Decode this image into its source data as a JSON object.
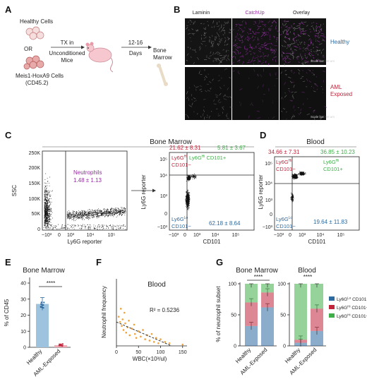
{
  "panel_letters": [
    "A",
    "B",
    "C",
    "D",
    "E",
    "F",
    "G"
  ],
  "panel_a": {
    "healthy": "Healthy Cells",
    "or": "OR",
    "donor_1": "Meis1-HoxA9 Cells",
    "donor_2": "(CD45.2)",
    "tx_1": "TX in",
    "tx_2": "Unconditioned",
    "tx_3": "Mice",
    "days_1": "12-16",
    "days_2": "Days",
    "bm_1": "Bone",
    "bm_2": "Marrow",
    "colors": {
      "cells": "#e8a9a9",
      "mouse": "#f6c7cf",
      "bone": "#e9dcc6"
    }
  },
  "panel_b": {
    "channels": [
      "Laminin",
      "CatchUp",
      "Overlay"
    ],
    "channel_colors": [
      "#555555",
      "#9a2aa6",
      "#555555"
    ],
    "rows": [
      {
        "label": "Healthy",
        "color": "#2c6aa0"
      },
      {
        "label_1": "AML",
        "label_2": "Exposed",
        "color": "#c0243b"
      }
    ],
    "scale_bar": "Scale bar: 50 um"
  },
  "panel_c": {
    "header": "Bone Marrow",
    "left": {
      "gate_label": "Neutrophils",
      "gate_value": "1.48 ± 1.13",
      "ylabel": "SSC",
      "xlabel": "Ly6G reporter",
      "yticks": [
        "250K",
        "200K",
        "150K",
        "100K",
        "50K",
        "0"
      ],
      "xticks": [
        "−10³",
        "0",
        "10³",
        "10⁴",
        "10⁵"
      ]
    },
    "right": {
      "q_top_left": "21.62 ± 8.31",
      "q_top_right": "5.81 ± 3.67",
      "q_bottom_right": "62.18 ± 8.64",
      "ylabel": "Ly6G reporter",
      "xlabel": "CD101",
      "yticks": [
        "10⁵",
        "10⁴",
        "10³",
        "0",
        "−10³"
      ],
      "xticks": [
        "−10³",
        "0",
        "10³",
        "10⁴",
        "10⁵"
      ]
    }
  },
  "panel_d": {
    "header": "Blood",
    "q_top_left": "34.66 ± 7.31",
    "q_top_right": "36.85 ± 10.23",
    "q_bottom_right": "19.64 ± 11.83",
    "ylabel": "Ly6G reporter",
    "xlabel": "CD101",
    "yticks": [
      "10⁵",
      "10⁴",
      "10³",
      "0",
      "−10³"
    ],
    "xticks": [
      "−10³",
      "0",
      "10³",
      "10⁴",
      "10⁵"
    ]
  },
  "quadrant_labels": {
    "hi": "Ly6G",
    "hi_sup": "Hi",
    "lo": "Ly6G",
    "lo_sup": "Lo",
    "cd101_neg": "CD101−",
    "cd101_pos": "CD101+",
    "colors": {
      "hi_neg": "#c0243b",
      "hi_pos": "#3fae49",
      "lo_neg": "#2c6aa0"
    }
  },
  "chart_data": [
    {
      "panel": "E",
      "type": "bar",
      "title": "Bone Marrow",
      "ylabel": "% of CD45",
      "categories": [
        "Healthy",
        "AML-Exposed"
      ],
      "values": [
        27,
        1.3
      ],
      "errors": [
        4,
        0.8
      ],
      "ylim": [
        0,
        40
      ],
      "yticks": [
        0,
        10,
        20,
        30,
        40
      ],
      "bar_colors": [
        "#9ec3de",
        "#f0a8b3"
      ],
      "point_colors": [
        "#2c6aa0",
        "#c0243b"
      ],
      "significance": "****"
    },
    {
      "panel": "F",
      "type": "scatter",
      "title": "Blood",
      "xlabel": "WBC(×10³/ul)",
      "ylabel": "Neutrophil frequency",
      "xlim": [
        0,
        160
      ],
      "xticks": [
        0,
        50,
        100,
        150
      ],
      "ylim": [
        0,
        50
      ],
      "point_color": "#f2a23a",
      "annotation": "R² = 0.5236",
      "points": [
        [
          5,
          22
        ],
        [
          8,
          18
        ],
        [
          10,
          28
        ],
        [
          12,
          15
        ],
        [
          14,
          20
        ],
        [
          16,
          12
        ],
        [
          18,
          25
        ],
        [
          20,
          17
        ],
        [
          22,
          10
        ],
        [
          25,
          14
        ],
        [
          28,
          19
        ],
        [
          30,
          8
        ],
        [
          35,
          13
        ],
        [
          40,
          16
        ],
        [
          42,
          9
        ],
        [
          45,
          6
        ],
        [
          50,
          11
        ],
        [
          55,
          7
        ],
        [
          60,
          12
        ],
        [
          65,
          5
        ],
        [
          70,
          8
        ],
        [
          75,
          4
        ],
        [
          80,
          9
        ],
        [
          85,
          3
        ],
        [
          90,
          6
        ],
        [
          95,
          2
        ],
        [
          100,
          5
        ],
        [
          110,
          3
        ],
        [
          120,
          2
        ],
        [
          150,
          1
        ]
      ],
      "fit_line": [
        [
          0,
          18
        ],
        [
          125,
          0
        ]
      ]
    },
    {
      "panel": "G",
      "type": "bar",
      "stacked": true,
      "ylabel": "% of neutrophil subset",
      "ylim": [
        0,
        100
      ],
      "yticks": [
        0,
        50,
        100
      ],
      "groups": [
        {
          "title": "Bone Marrow",
          "categories": [
            "Healthy",
            "AML-Exposed"
          ],
          "significance": "****"
        },
        {
          "title": "Blood",
          "categories": [
            "Healthy",
            "AML-Exposed"
          ],
          "significance": "****"
        }
      ],
      "series": [
        {
          "name": "Ly6G^Lo CD101−",
          "color": "#2c6aa0",
          "values": [
            32,
            62,
            5,
            24
          ]
        },
        {
          "name": "Ly6G^Hi CD101−",
          "color": "#c0243b",
          "values": [
            38,
            24,
            5,
            36
          ]
        },
        {
          "name": "Ly6G^Hi CD101+",
          "color": "#3fae49",
          "values": [
            30,
            14,
            90,
            40
          ]
        }
      ]
    }
  ]
}
